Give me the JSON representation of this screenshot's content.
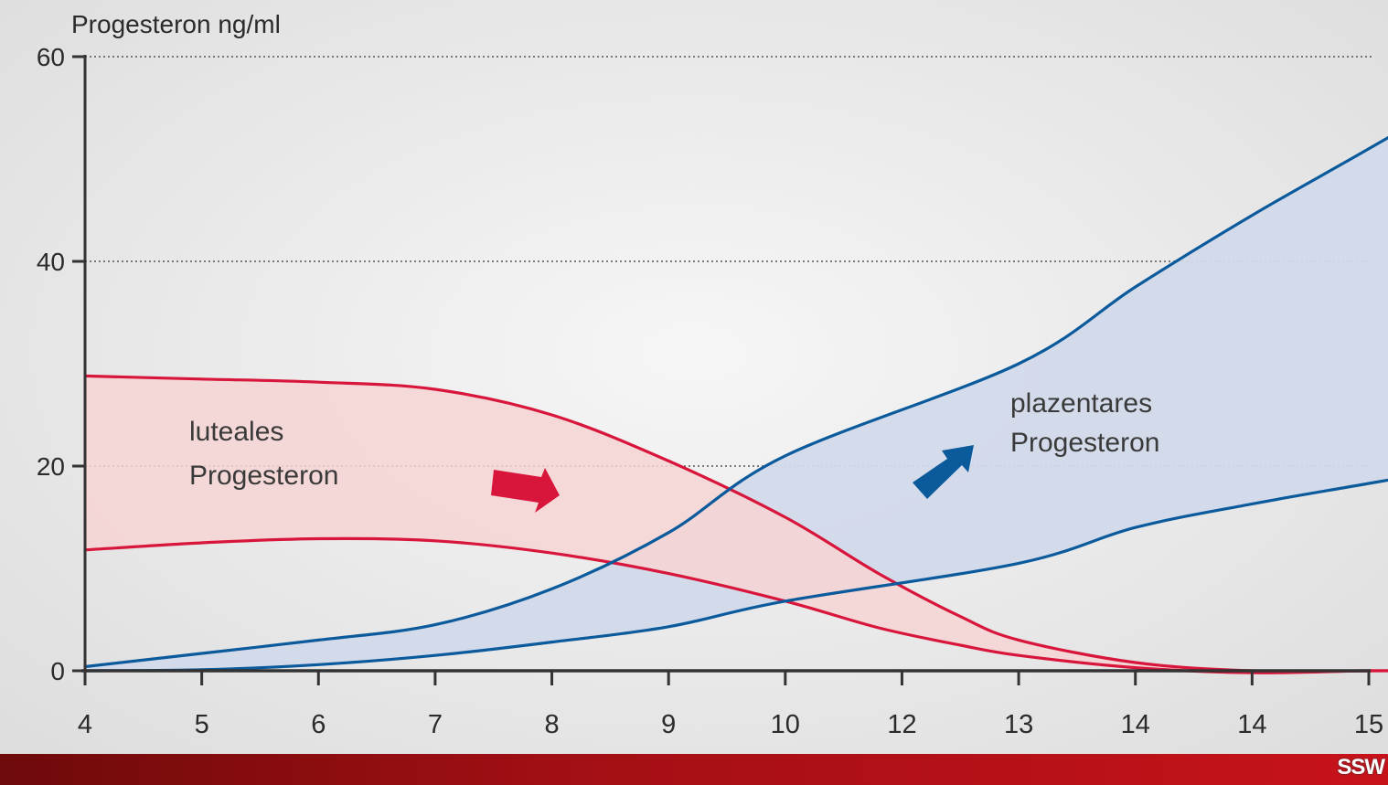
{
  "chart_data": {
    "type": "area",
    "ylabel": "Progesteron ng/ml",
    "xlabel": "",
    "x_tick_labels": [
      "4",
      "5",
      "6",
      "7",
      "8",
      "9",
      "10",
      "12",
      "13",
      "14",
      "14",
      "15"
    ],
    "y_ticks": [
      0,
      20,
      40,
      60
    ],
    "ylim": [
      0,
      60
    ],
    "grid": "dotted horizontal at 20, 40, 60",
    "series": [
      {
        "name": "luteales Progesteron",
        "color": "#d8163c",
        "fill": "#f6d3d3",
        "upper": [
          {
            "x": 4,
            "y": 28.8
          },
          {
            "x": 5,
            "y": 28.5
          },
          {
            "x": 6,
            "y": 28.2
          },
          {
            "x": 7,
            "y": 27.5
          },
          {
            "x": 8,
            "y": 25.0
          },
          {
            "x": 9,
            "y": 20.5
          },
          {
            "x": 10,
            "y": 15.0
          },
          {
            "x": 10.8,
            "y": 9.5
          },
          {
            "x": 11.5,
            "y": 5.3
          },
          {
            "x": 12,
            "y": 3.0
          },
          {
            "x": 13,
            "y": 0.8
          },
          {
            "x": 14,
            "y": 0.0
          },
          {
            "x": 15,
            "y": 0.0
          },
          {
            "x": 16,
            "y": 0.0
          }
        ],
        "lower": [
          {
            "x": 4,
            "y": 11.8
          },
          {
            "x": 5,
            "y": 12.5
          },
          {
            "x": 6,
            "y": 12.9
          },
          {
            "x": 7,
            "y": 12.7
          },
          {
            "x": 8,
            "y": 11.5
          },
          {
            "x": 9,
            "y": 9.5
          },
          {
            "x": 10,
            "y": 6.8
          },
          {
            "x": 10.8,
            "y": 4.2
          },
          {
            "x": 11.5,
            "y": 2.5
          },
          {
            "x": 12,
            "y": 1.5
          },
          {
            "x": 13,
            "y": 0.3
          },
          {
            "x": 14,
            "y": -0.2
          },
          {
            "x": 15,
            "y": 0.0
          },
          {
            "x": 16,
            "y": 0.0
          }
        ]
      },
      {
        "name": "plazentares Progesteron",
        "color": "#0a5a9c",
        "fill": "#d2d9ea",
        "upper": [
          {
            "x": 4,
            "y": 0.4
          },
          {
            "x": 5,
            "y": 1.7
          },
          {
            "x": 6,
            "y": 3.0
          },
          {
            "x": 7,
            "y": 4.5
          },
          {
            "x": 8,
            "y": 8.0
          },
          {
            "x": 9,
            "y": 13.5
          },
          {
            "x": 10,
            "y": 21.0
          },
          {
            "x": 12,
            "y": 30.0
          },
          {
            "x": 13,
            "y": 37.5
          },
          {
            "x": 14,
            "y": 44.5
          },
          {
            "x": 15,
            "y": 51.0
          },
          {
            "x": 16,
            "y": 57.6
          }
        ],
        "lower": [
          {
            "x": 4,
            "y": 0.0
          },
          {
            "x": 5,
            "y": 0.1
          },
          {
            "x": 6,
            "y": 0.6
          },
          {
            "x": 7,
            "y": 1.5
          },
          {
            "x": 8,
            "y": 2.8
          },
          {
            "x": 9,
            "y": 4.3
          },
          {
            "x": 10,
            "y": 6.8
          },
          {
            "x": 12,
            "y": 10.5
          },
          {
            "x": 13,
            "y": 14.0
          },
          {
            "x": 14,
            "y": 16.3
          },
          {
            "x": 15,
            "y": 18.3
          },
          {
            "x": 16,
            "y": 20.3
          }
        ]
      }
    ],
    "annotations": [
      {
        "id": "luteal-label",
        "lines": [
          "luteales",
          "Progesteron"
        ]
      },
      {
        "id": "placental-label",
        "lines": [
          "plazentares",
          "Progesteron"
        ]
      }
    ],
    "arrows": [
      {
        "series": "luteales Progesteron",
        "direction": "right",
        "color": "#d8163c"
      },
      {
        "series": "plazentares Progesteron",
        "direction": "up-right",
        "color": "#0a5a9c"
      }
    ]
  },
  "footer": {
    "label": "SSW",
    "gradient_from": "#6e0a0a",
    "gradient_to": "#c8121a"
  }
}
